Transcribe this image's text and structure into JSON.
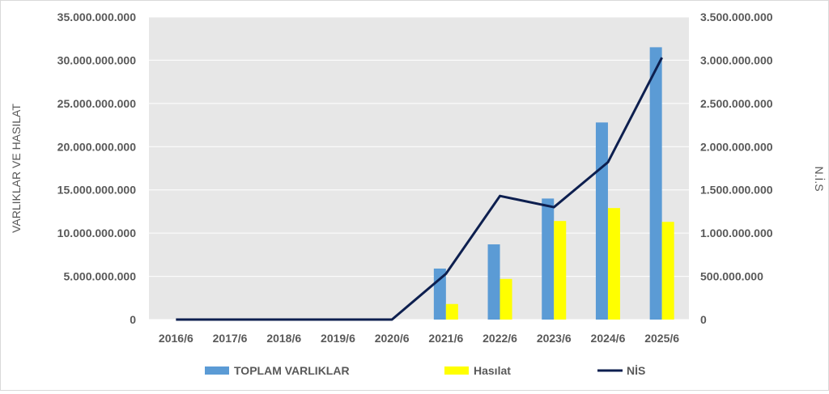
{
  "chart_data": {
    "type": "bar",
    "categories": [
      "2016/6",
      "2017/6",
      "2018/6",
      "2019/6",
      "2020/6",
      "2021/6",
      "2022/6",
      "2023/6",
      "2024/6",
      "2025/6"
    ],
    "y_left_label": "VARLIKLAR VE HASILAT",
    "y_right_label": "N.İ.S",
    "y_left_range": [
      0,
      35000000000
    ],
    "y_right_range": [
      0,
      3500000000
    ],
    "y_left_ticks": [
      "0",
      "5.000.000.000",
      "10.000.000.000",
      "15.000.000.000",
      "20.000.000.000",
      "25.000.000.000",
      "30.000.000.000",
      "35.000.000.000"
    ],
    "y_right_ticks": [
      "0",
      "500.000.000",
      "1.000.000.000",
      "1.500.000.000",
      "2.000.000.000",
      "2.500.000.000",
      "3.000.000.000",
      "3.500.000.000"
    ],
    "grid": true,
    "legend_position": "bottom",
    "series": [
      {
        "name": "TOPLAM VARLIKLAR",
        "type": "bar",
        "axis": "left",
        "color": "#5b9bd5",
        "values": [
          0,
          0,
          0,
          0,
          0,
          5900000000,
          8700000000,
          14000000000,
          22800000000,
          31500000000
        ]
      },
      {
        "name": "Hasılat",
        "type": "bar",
        "axis": "left",
        "color": "#ffff00",
        "values": [
          0,
          0,
          0,
          0,
          0,
          1800000000,
          4700000000,
          11400000000,
          12900000000,
          11300000000
        ]
      },
      {
        "name": "NİS",
        "type": "line",
        "axis": "right",
        "color": "#0d1f4f",
        "values": [
          0,
          0,
          0,
          0,
          0,
          530000000,
          1430000000,
          1300000000,
          1820000000,
          3030000000
        ]
      }
    ]
  }
}
